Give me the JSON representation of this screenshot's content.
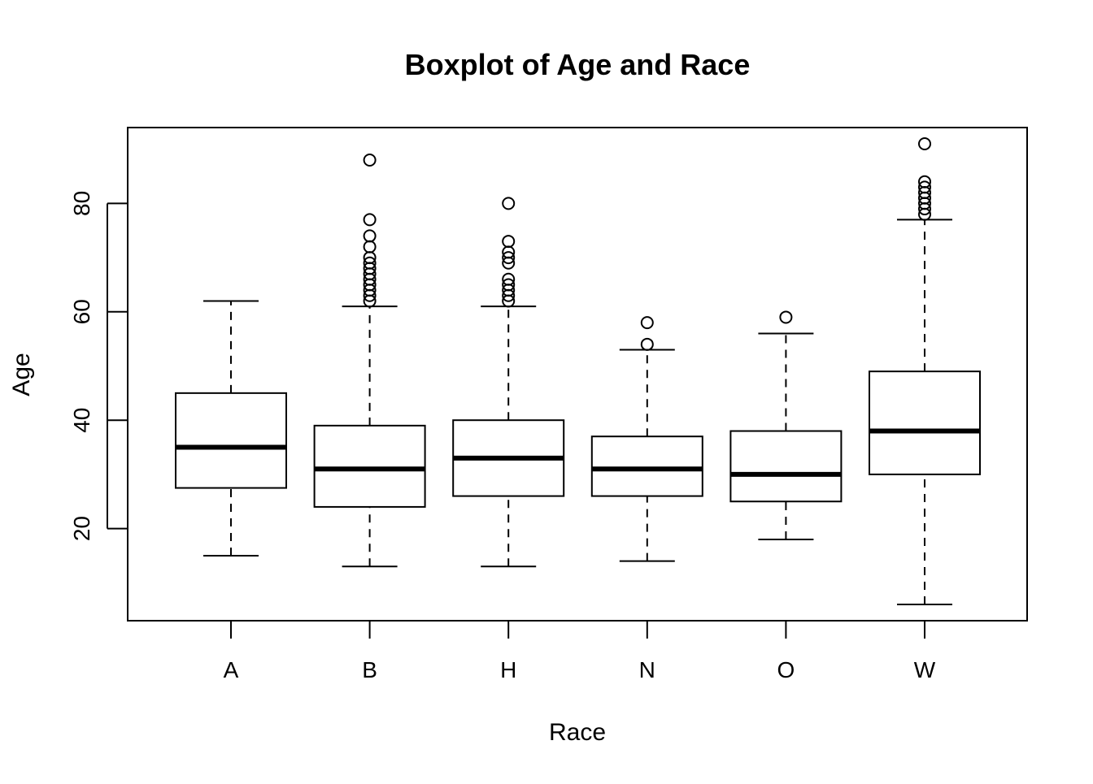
{
  "chart_data": {
    "type": "boxplot",
    "title": "Boxplot of Age and Race",
    "xlabel": "Race",
    "ylabel": "Age",
    "ylim": [
      3,
      94
    ],
    "y_ticks": [
      20,
      40,
      60,
      80
    ],
    "grid": false,
    "legend": "none",
    "colors": {
      "stroke": "#000000",
      "background": "#ffffff"
    },
    "categories": [
      "A",
      "B",
      "H",
      "N",
      "O",
      "W"
    ],
    "series": [
      {
        "category": "A",
        "whisker_low": 15,
        "q1": 27.5,
        "median": 35,
        "q3": 45,
        "whisker_high": 62,
        "outliers": []
      },
      {
        "category": "B",
        "whisker_low": 13,
        "q1": 24,
        "median": 31,
        "q3": 39,
        "whisker_high": 61,
        "outliers": [
          62,
          63,
          64,
          65,
          66,
          67,
          68,
          69,
          70,
          72,
          74,
          77,
          88
        ]
      },
      {
        "category": "H",
        "whisker_low": 13,
        "q1": 26,
        "median": 33,
        "q3": 40,
        "whisker_high": 61,
        "outliers": [
          62,
          63,
          64,
          65,
          66,
          69,
          70,
          71,
          73,
          80
        ]
      },
      {
        "category": "N",
        "whisker_low": 14,
        "q1": 26,
        "median": 31,
        "q3": 37,
        "whisker_high": 53,
        "outliers": [
          54,
          58
        ]
      },
      {
        "category": "O",
        "whisker_low": 18,
        "q1": 25,
        "median": 30,
        "q3": 38,
        "whisker_high": 56,
        "outliers": [
          59
        ]
      },
      {
        "category": "W",
        "whisker_low": 6,
        "q1": 30,
        "median": 38,
        "q3": 49,
        "whisker_high": 77,
        "outliers": [
          78,
          79,
          80,
          81,
          82,
          83,
          84,
          91
        ]
      }
    ]
  }
}
